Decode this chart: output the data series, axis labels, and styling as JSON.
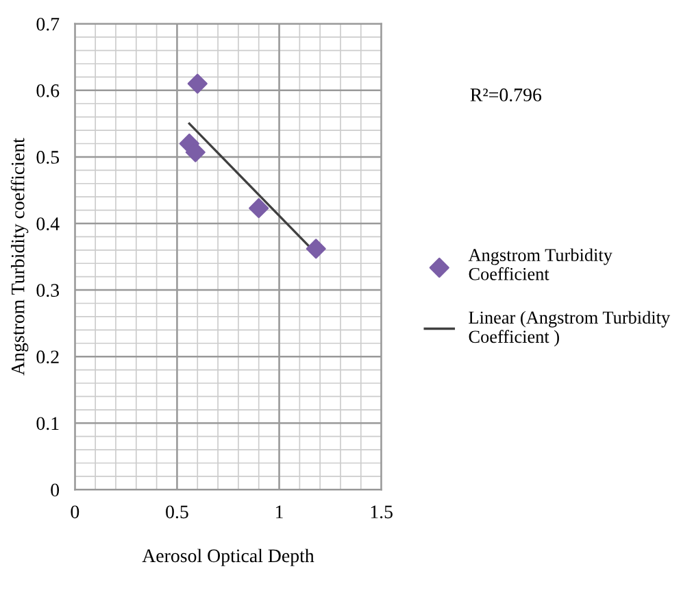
{
  "chart_data": {
    "type": "scatter",
    "xlabel": "Aerosol Optical Depth",
    "ylabel": "Angstrom Turbidity coefficient",
    "series": [
      {
        "name": "Angstrom Turbidity Coefficient",
        "color": "#7b5ea7",
        "marker": "diamond",
        "x": [
          0.6,
          0.56,
          0.59,
          0.9,
          1.18
        ],
        "values": [
          0.61,
          0.52,
          0.507,
          0.423,
          0.362
        ]
      },
      {
        "type": "line",
        "name": "Linear (Angstrom Turbidity Coefficient )",
        "color": "#404040",
        "line_style": "solid",
        "x": [
          0.56,
          1.18
        ],
        "values": [
          0.55,
          0.355
        ]
      }
    ],
    "annotations": [
      "R²=0.796"
    ],
    "xlim": [
      0,
      1.5
    ],
    "xticks": [
      0,
      0.5,
      1,
      1.5
    ],
    "ylim": [
      0,
      0.7
    ],
    "yticks": [
      0,
      0.1,
      0.2,
      0.3,
      0.4,
      0.5,
      0.6,
      0.7
    ],
    "grid": true,
    "legend": "right"
  }
}
